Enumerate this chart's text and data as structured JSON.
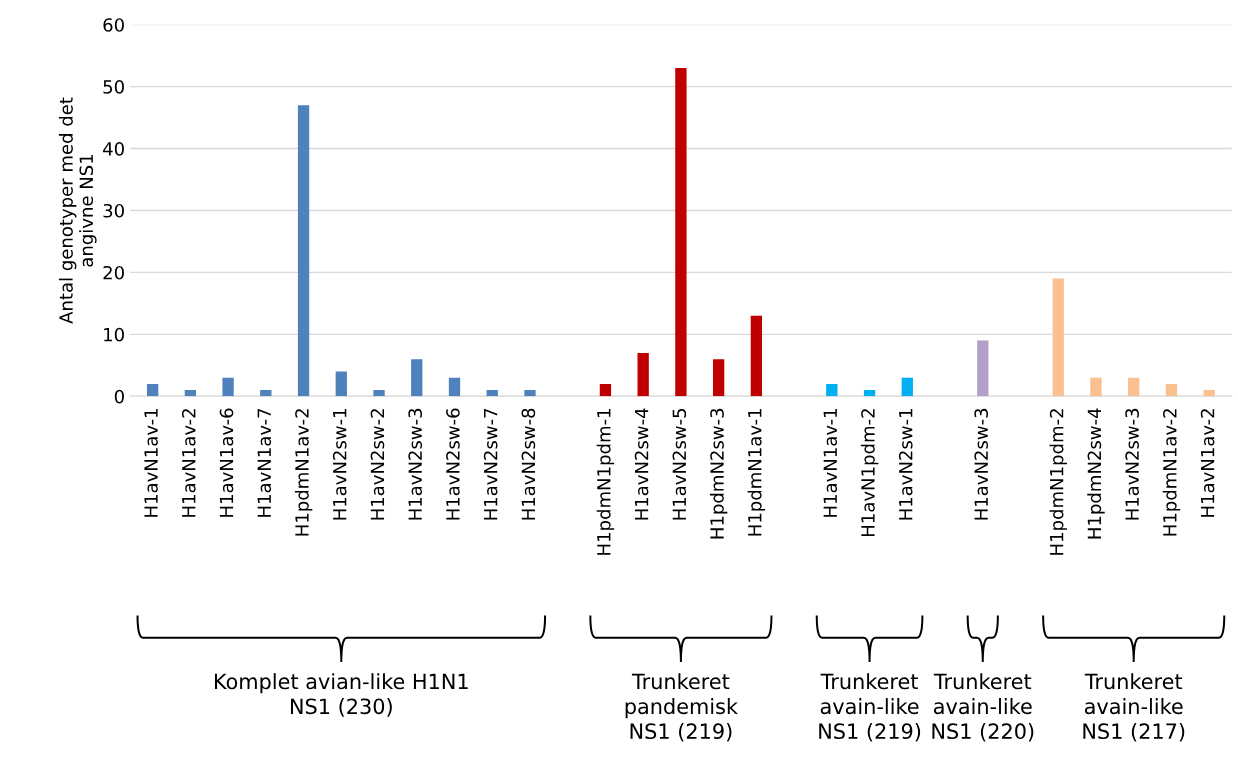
{
  "chart_data": {
    "type": "bar",
    "ylabel": "Antal genotyper med det\nangivne NS1",
    "categories": [
      "H1avN1av-1",
      "H1avN1av-2",
      "H1avN1av-6",
      "H1avN1av-7",
      "H1pdmN1av-2",
      "H1avN2sw-1",
      "H1avN2sw-2",
      "H1avN2sw-3",
      "H1avN2sw-6",
      "H1avN2sw-7",
      "H1avN2sw-8",
      null,
      "H1pdmN1pdm-1",
      "H1avN2sw-4",
      "H1avN2sw-5",
      "H1pdmN2sw-3",
      "H1pdmN1av-1",
      null,
      "H1avN1av-1",
      "H1avN1pdm-2",
      "H1avN2sw-1",
      null,
      "H1avN2sw-3",
      null,
      "H1pdmN1pdm-2",
      "H1pdmN2sw-4",
      "H1avN2sw-3",
      "H1pdmN1av-2",
      "H1avN1av-2"
    ],
    "values": [
      2,
      1,
      3,
      1,
      47,
      4,
      1,
      6,
      3,
      1,
      1,
      null,
      2,
      7,
      53,
      6,
      13,
      null,
      2,
      1,
      3,
      null,
      9,
      null,
      19,
      3,
      3,
      2,
      1
    ],
    "colors": [
      "#4f81bd",
      "#4f81bd",
      "#4f81bd",
      "#4f81bd",
      "#4f81bd",
      "#4f81bd",
      "#4f81bd",
      "#4f81bd",
      "#4f81bd",
      "#4f81bd",
      "#4f81bd",
      null,
      "#c00000",
      "#c00000",
      "#c00000",
      "#c00000",
      "#c00000",
      null,
      "#00b0f0",
      "#00b0f0",
      "#00b0f0",
      null,
      "#b1a0c7",
      null,
      "#fac090",
      "#fac090",
      "#fac090",
      "#fac090",
      "#fac090"
    ],
    "ylim": [
      0,
      60
    ],
    "yticks": [
      0,
      10,
      20,
      30,
      40,
      50,
      60
    ],
    "grid": "y",
    "annotations": [
      "Komplet avian-like H1N1\nNS1 (230)",
      "Trunkeret\npandemisk\nNS1 (219)",
      "Trunkeret\navain-like\nNS1 (219)",
      "Trunkeret\navain-like\nNS1 (220)",
      "Trunkeret\navain-like\nNS1 (217)"
    ]
  }
}
